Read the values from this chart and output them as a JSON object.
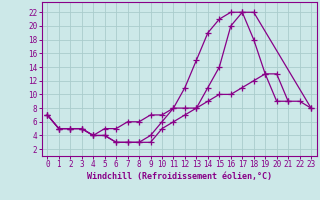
{
  "xlabel": "Windchill (Refroidissement éolien,°C)",
  "background_color": "#cce8e8",
  "grid_color": "#aacccc",
  "line_color": "#880088",
  "xlim": [
    -0.5,
    23.5
  ],
  "ylim": [
    1.0,
    23.5
  ],
  "xticks": [
    0,
    1,
    2,
    3,
    4,
    5,
    6,
    7,
    8,
    9,
    10,
    11,
    12,
    13,
    14,
    15,
    16,
    17,
    18,
    19,
    20,
    21,
    22,
    23
  ],
  "yticks": [
    2,
    4,
    6,
    8,
    10,
    12,
    14,
    16,
    18,
    20,
    22
  ],
  "line1_x": [
    0,
    1,
    2,
    3,
    4,
    5,
    6,
    7,
    8,
    9,
    10,
    11,
    12,
    13,
    14,
    15,
    16,
    17,
    18,
    19,
    20,
    21
  ],
  "line1_y": [
    7,
    5,
    5,
    5,
    4,
    4,
    3,
    3,
    3,
    4,
    6,
    8,
    11,
    15,
    19,
    21,
    22,
    22,
    18,
    13,
    9,
    9
  ],
  "line2_x": [
    0,
    1,
    2,
    3,
    4,
    5,
    6,
    7,
    8,
    9,
    10,
    11,
    12,
    13,
    14,
    15,
    16,
    17,
    18,
    23
  ],
  "line2_y": [
    7,
    5,
    5,
    5,
    4,
    4,
    3,
    3,
    3,
    3,
    5,
    6,
    7,
    8,
    11,
    14,
    20,
    22,
    22,
    8
  ],
  "line3_x": [
    0,
    1,
    2,
    3,
    4,
    5,
    6,
    7,
    8,
    9,
    10,
    11,
    12,
    13,
    14,
    15,
    16,
    17,
    18,
    19,
    20,
    21,
    22,
    23
  ],
  "line3_y": [
    7,
    5,
    5,
    5,
    4,
    5,
    5,
    6,
    6,
    7,
    7,
    8,
    8,
    8,
    9,
    10,
    10,
    11,
    12,
    13,
    13,
    9,
    9,
    8
  ]
}
